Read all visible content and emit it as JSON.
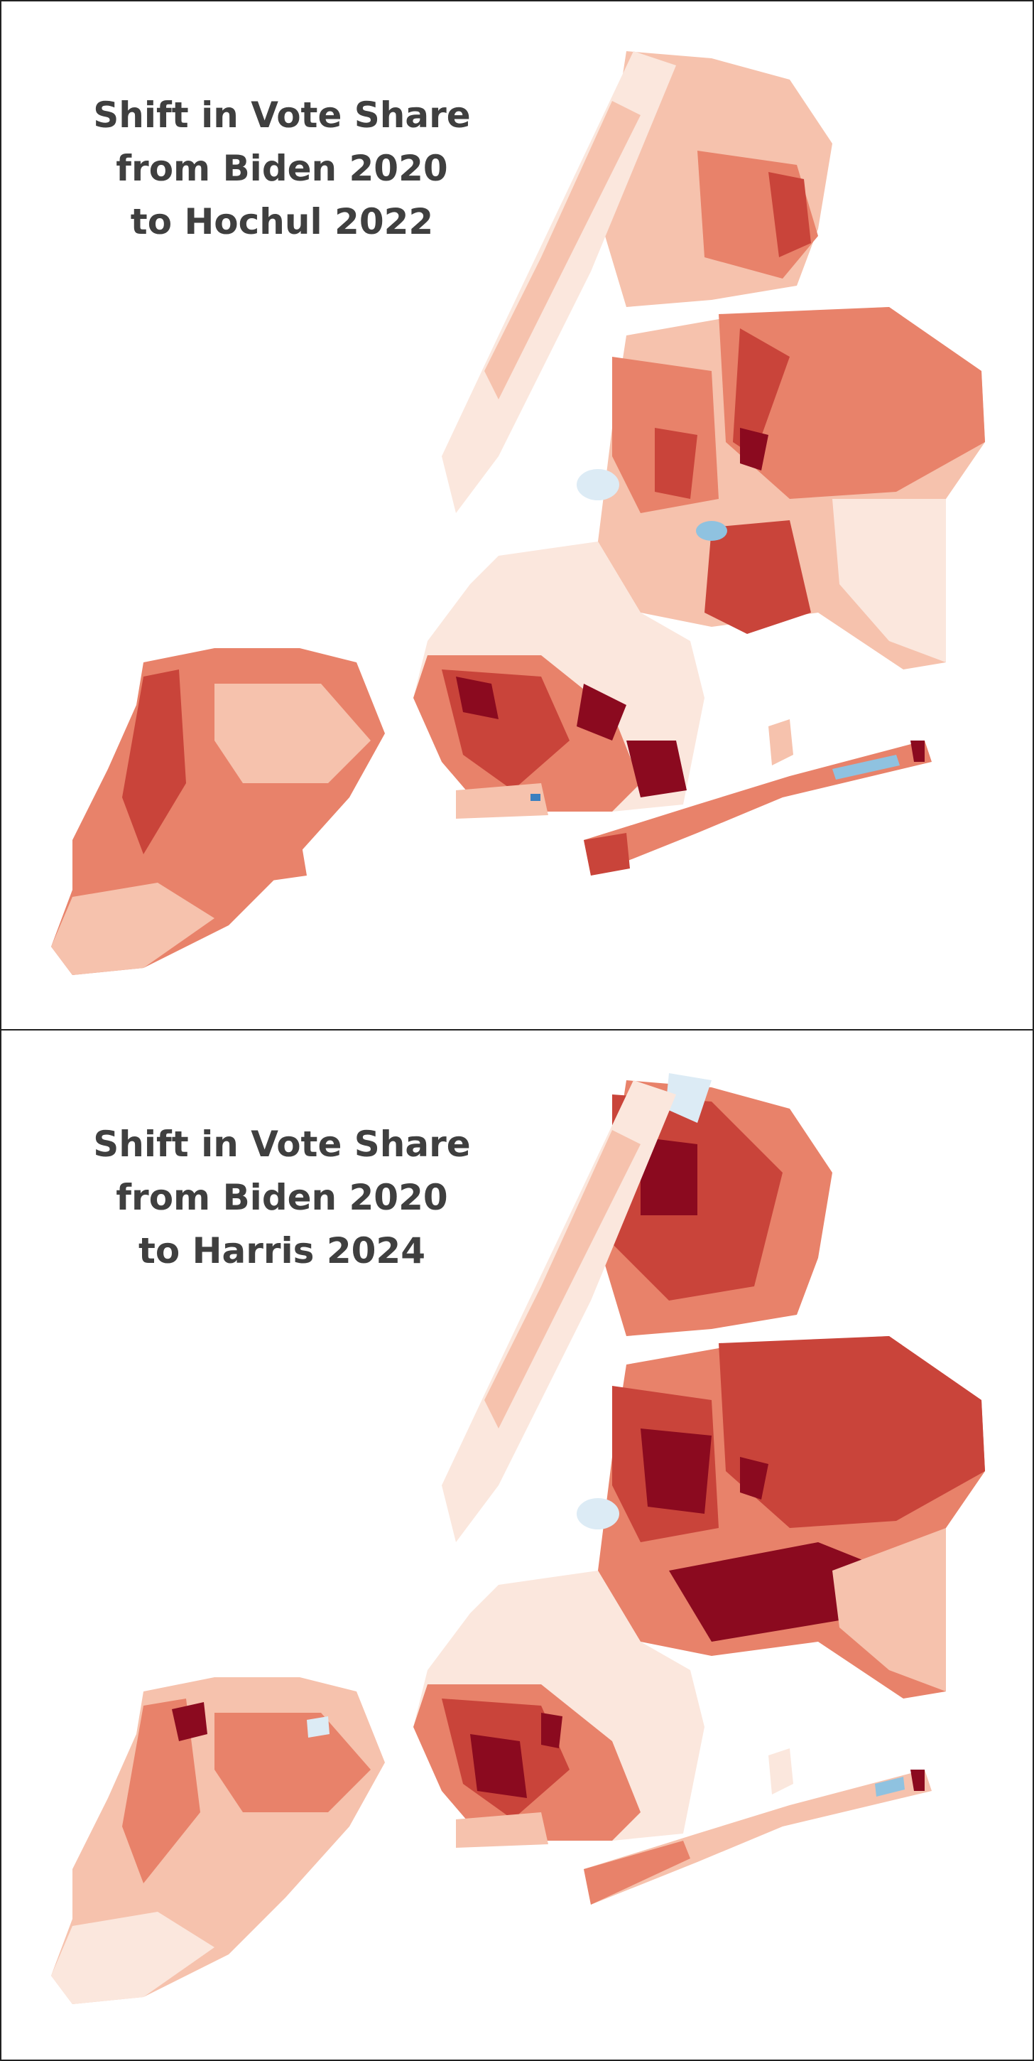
{
  "panels": [
    {
      "title_lines": [
        "Shift in Vote Share",
        "from Biden 2020",
        "to Hochul 2022"
      ]
    },
    {
      "title_lines": [
        "Shift in Vote Share",
        "from Biden 2020",
        "to Harris 2024"
      ]
    }
  ],
  "colors": {
    "title": "#3f3f3f",
    "shift_strong_right": "#8b0a1f",
    "shift_right": "#c9443a",
    "shift_moderate_right": "#e8826a",
    "shift_slight_right": "#f6c2ad",
    "shift_minimal": "#fbe7dd",
    "shift_slight_left": "#dcebf5",
    "shift_left": "#8fc2e0"
  },
  "regions": [
    "staten-island",
    "brooklyn",
    "queens",
    "manhattan",
    "bronx",
    "rockaway",
    "jamaica-bay-islands"
  ]
}
